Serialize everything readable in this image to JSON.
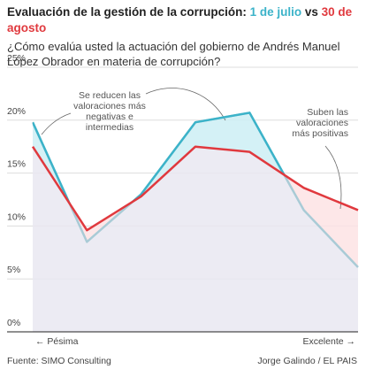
{
  "chart_data": {
    "type": "line",
    "title": "Evaluación de la gestión de la corrupción:",
    "title_connector": "vs",
    "subtitle": "¿Cómo evalúa usted la actuación del gobierno de Andrés Manuel López Obrador en materia de corrupción?",
    "categories": [
      "← Pésima",
      null,
      null,
      null,
      null,
      null,
      "Excelente →"
    ],
    "series": [
      {
        "name": "1 de julio",
        "color": "#3bb3c9",
        "faded_color": "#a9cbd6",
        "values": [
          19.8,
          8.5,
          13.0,
          19.8,
          20.7,
          11.5,
          6.1
        ]
      },
      {
        "name": "30 de agosto",
        "color": "#e0393e",
        "values": [
          17.5,
          9.6,
          12.8,
          17.5,
          17.0,
          13.6,
          11.5
        ]
      }
    ],
    "ylim": [
      0,
      25
    ],
    "yticks": [
      {
        "value": 0,
        "label": "0%"
      },
      {
        "value": 5,
        "label": "5%"
      },
      {
        "value": 10,
        "label": "10%"
      },
      {
        "value": 15,
        "label": "15%"
      },
      {
        "value": 20,
        "label": "20%"
      },
      {
        "value": 25,
        "label": "25%"
      }
    ],
    "grid": true,
    "annotations": [
      [
        "Se reducen las",
        "valoraciones más",
        "negativas e",
        "intermedias"
      ],
      [
        "Suben las",
        "valoraciones",
        "más positivas"
      ]
    ],
    "source": "Fuente: SIMO Consulting",
    "credit": "Jorge Galindo / EL PAIS"
  }
}
